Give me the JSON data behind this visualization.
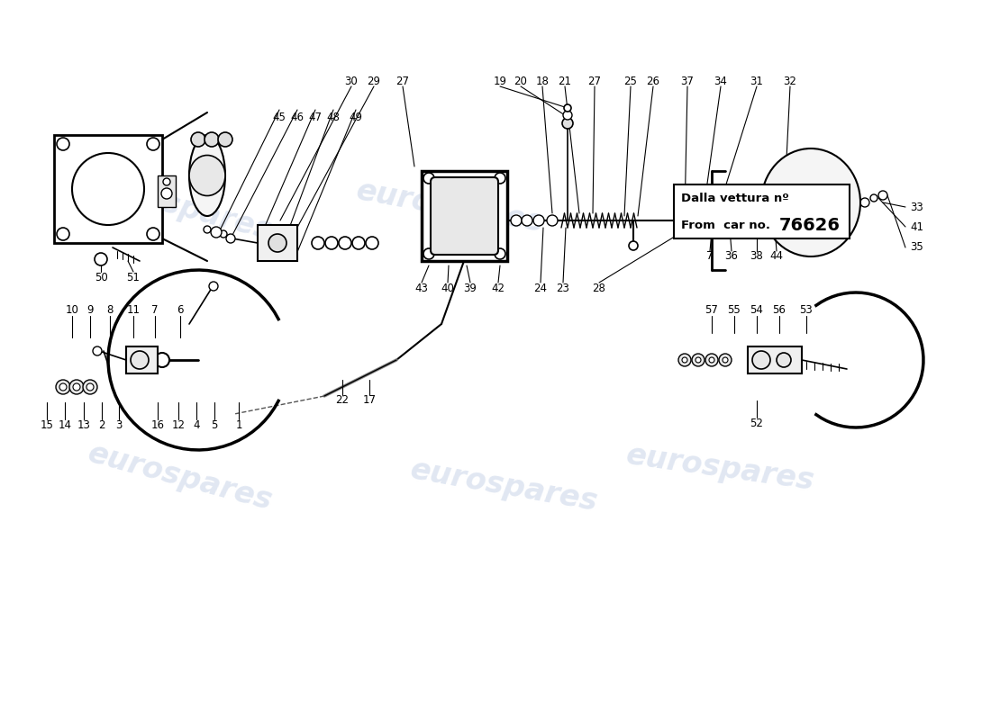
{
  "background_color": "#ffffff",
  "watermark_color": "#c8d4e8",
  "watermark_text": "eurospares",
  "box_note_line1": "Dalla vettura nº",
  "box_note_line2": "From  car no.",
  "box_note_number": "76626",
  "label_fontsize": 8.5,
  "line_color": "#000000",
  "part_color": "#f0f0f0"
}
